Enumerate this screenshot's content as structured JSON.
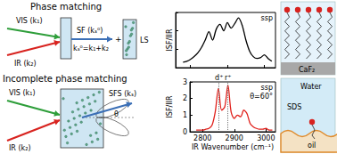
{
  "left_diagram": {
    "top": {
      "title": "Phase matching",
      "vis": "VIS (k₁)",
      "ir": "IR (k₂)",
      "sf": "SF (kₛ⁰)",
      "equation": "kₛ⁰=k₁+k₂",
      "plus": "+",
      "ls": "LS"
    },
    "bottom": {
      "title": "Incomplete phase matching",
      "vis": "VIS (k₁)",
      "ir": "IR (k₂)",
      "sfs": "SFS (kₛ)",
      "angle": "θ"
    }
  },
  "chart_data": [
    {
      "type": "line",
      "ylabel": "ISF/IIR",
      "annotations": [
        "ssp"
      ],
      "color": "#000000",
      "x": [
        2780,
        2790,
        2800,
        2810,
        2820,
        2830,
        2840,
        2850,
        2860,
        2870,
        2880,
        2890,
        2900,
        2910,
        2920,
        2930,
        2940,
        2950,
        2960,
        2970,
        2980,
        2990,
        3000,
        3010,
        3020
      ],
      "values": [
        0.6,
        0.7,
        0.9,
        1.2,
        1.6,
        2.2,
        3.0,
        3.9,
        3.0,
        4.2,
        4.7,
        4.0,
        4.9,
        4.3,
        4.8,
        5.4,
        4.6,
        3.0,
        1.8,
        1.2,
        1.0,
        1.1,
        1.4,
        1.0,
        0.7
      ],
      "xlim": [
        2760,
        3030
      ],
      "xticks": [
        2800,
        2900,
        3000
      ],
      "ylim": [
        0,
        6
      ],
      "yticks": [
        0,
        2,
        4,
        6
      ],
      "tick_labels": false
    },
    {
      "type": "line",
      "ylabel": "ISF/IIR",
      "xlabel": "IR Wavenumber (cm⁻¹)",
      "annotations": [
        "ssp",
        "θ=60°"
      ],
      "color": "#e0201b",
      "x": [
        2780,
        2790,
        2800,
        2810,
        2820,
        2830,
        2840,
        2850,
        2860,
        2870,
        2880,
        2890,
        2900,
        2910,
        2920,
        2930,
        2940,
        2950,
        2960,
        2970,
        2980,
        2990,
        3000,
        3010,
        3020
      ],
      "values": [
        0.1,
        0.1,
        0.1,
        0.15,
        0.2,
        0.4,
        1.2,
        2.6,
        1.3,
        1.5,
        2.8,
        1.2,
        0.8,
        1.0,
        0.9,
        1.3,
        1.1,
        0.5,
        0.3,
        0.2,
        0.15,
        0.15,
        0.2,
        0.1,
        0.1
      ],
      "reference_lines": [
        {
          "x": 2852,
          "label": "d⁺"
        },
        {
          "x": 2880,
          "label": "r⁺"
        }
      ],
      "xlim": [
        2760,
        3030
      ],
      "xticks": [
        2800,
        2900,
        3000
      ],
      "ylim": [
        0,
        3
      ],
      "yticks": [
        0,
        1,
        2,
        3
      ]
    }
  ],
  "right_diagram": {
    "top": {
      "label": "CaF₂"
    },
    "bottom": {
      "water": "Water",
      "sds": "SDS",
      "oil": "oil"
    }
  }
}
